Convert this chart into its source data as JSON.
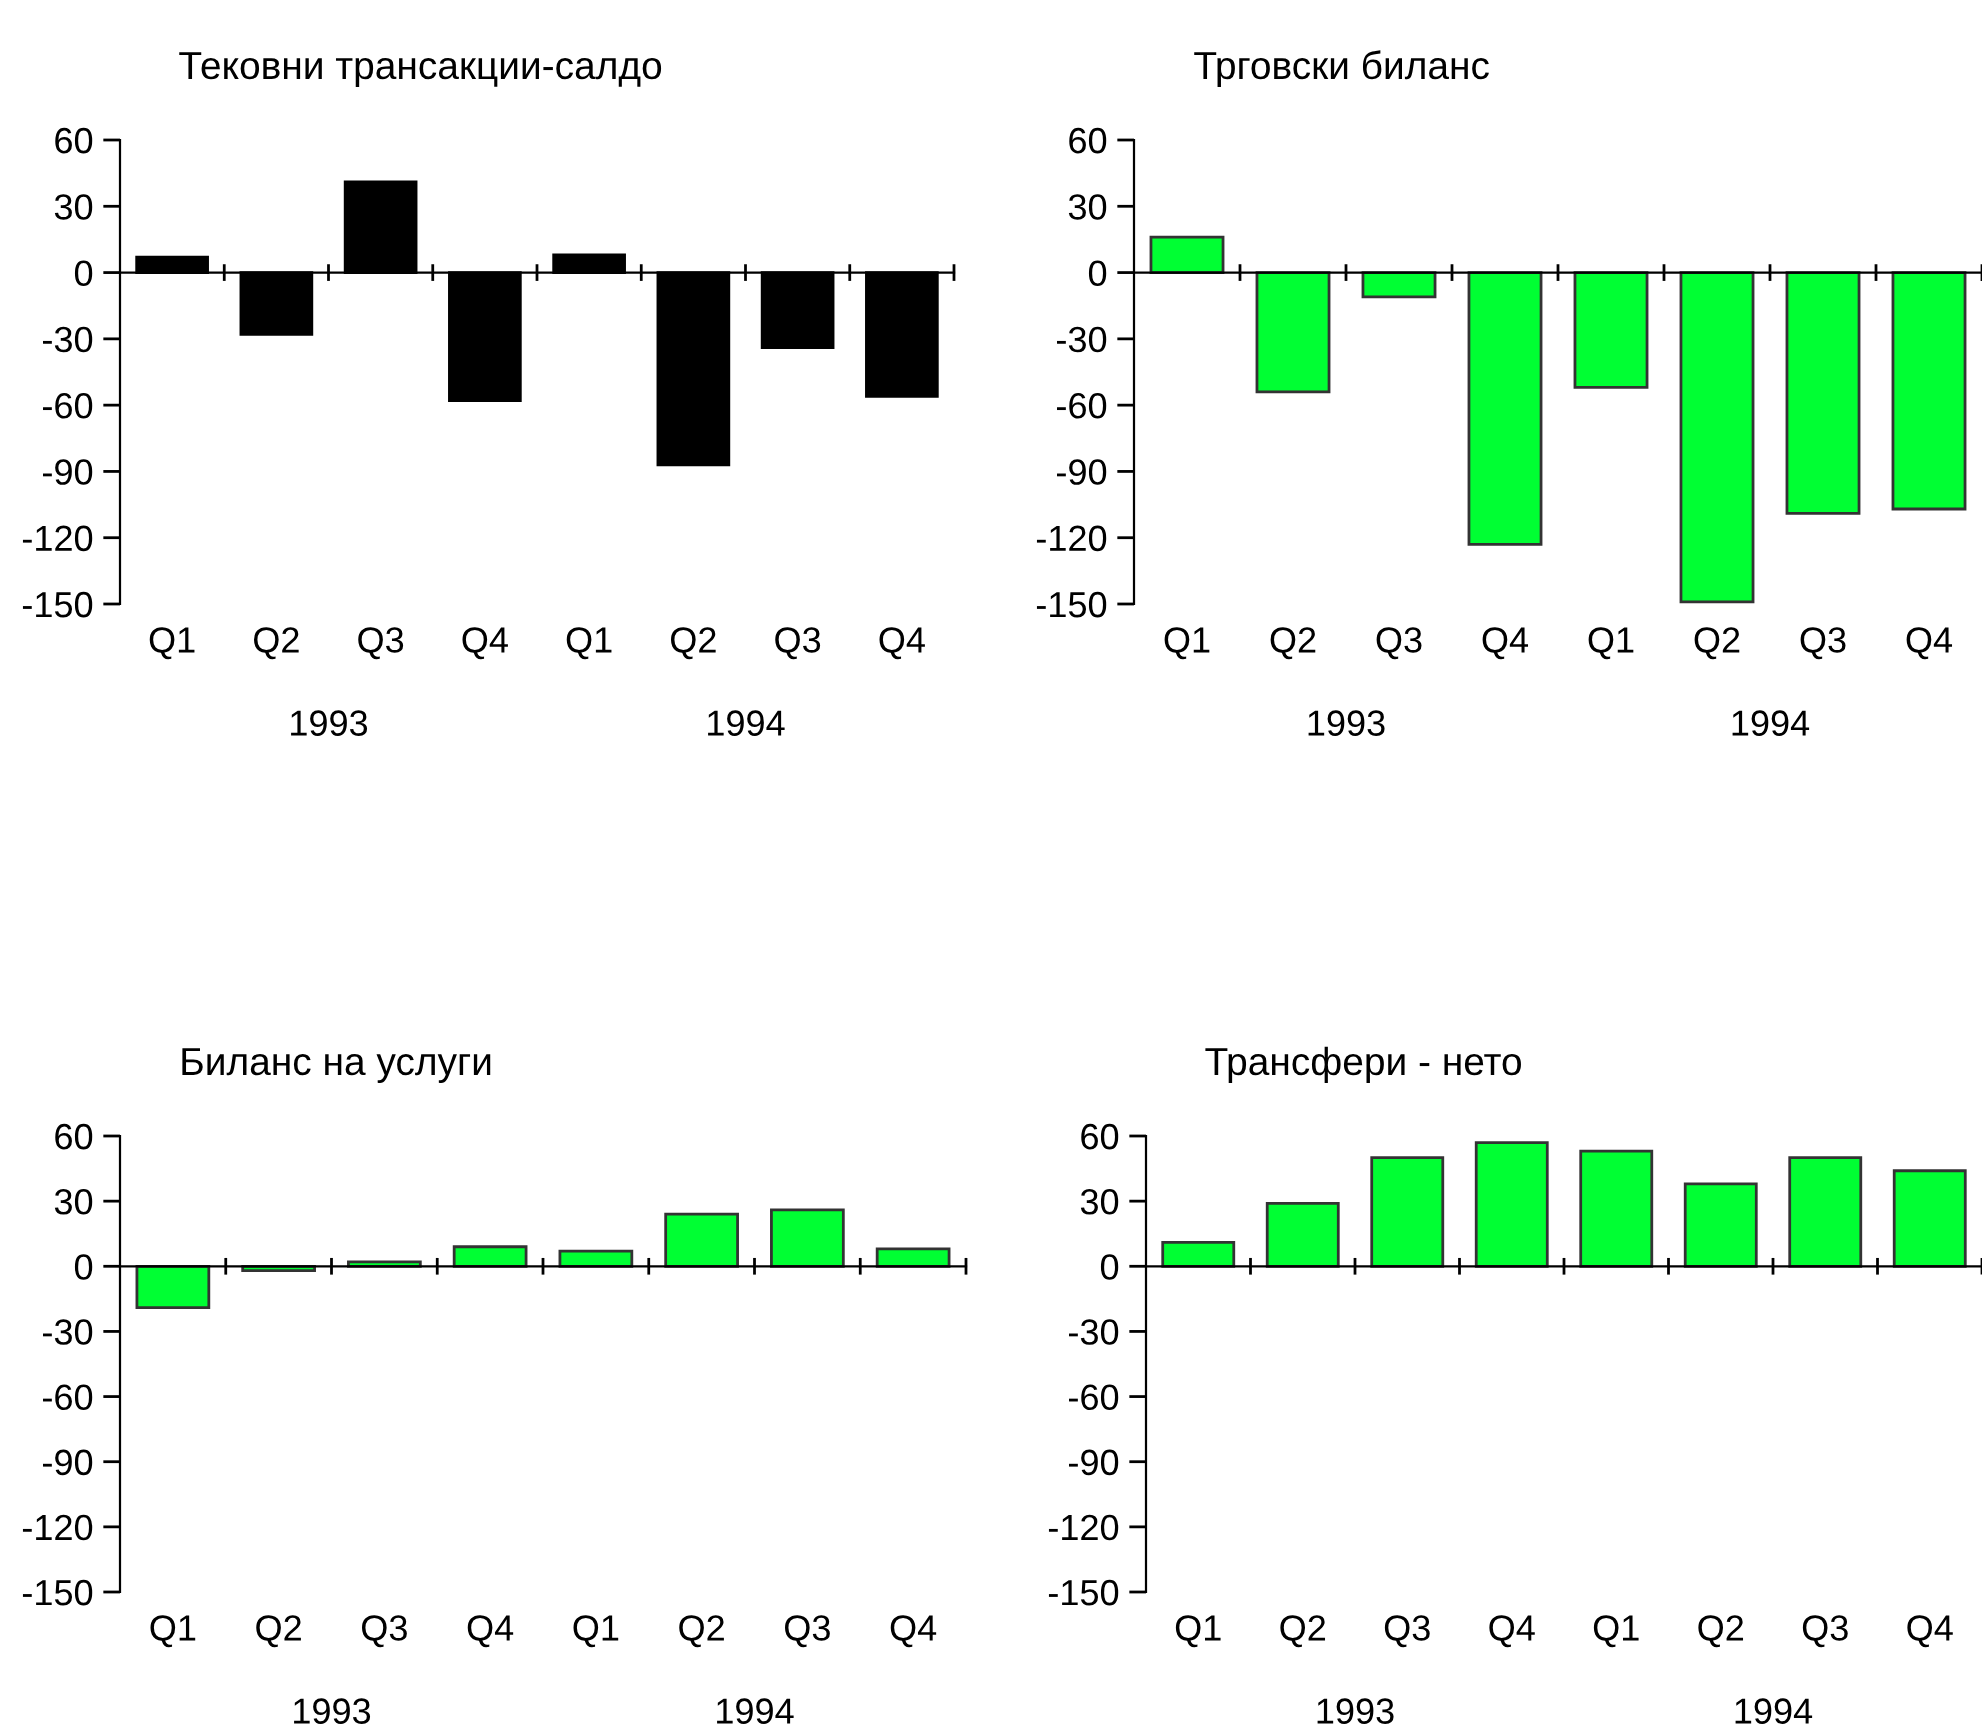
{
  "chart_data": [
    {
      "type": "bar",
      "title": "Тековни трансакции-салдо",
      "categories": [
        "Q1",
        "Q2",
        "Q3",
        "Q4",
        "Q1",
        "Q2",
        "Q3",
        "Q4"
      ],
      "values": [
        7,
        -28,
        41,
        -58,
        8,
        -87,
        -34,
        -56
      ],
      "color": "#000000",
      "ylim": [
        -150,
        60
      ],
      "yticks": [
        -150,
        -120,
        -90,
        -60,
        -30,
        0,
        30,
        60
      ],
      "annotations": [
        "1993",
        "1994"
      ]
    },
    {
      "type": "bar",
      "title": "Трговски биланс",
      "categories": [
        "Q1",
        "Q2",
        "Q3",
        "Q4",
        "Q1",
        "Q2",
        "Q3",
        "Q4"
      ],
      "values": [
        16,
        -54,
        -11,
        -123,
        -52,
        -149,
        -109,
        -107
      ],
      "color": "#00ff33",
      "ylim": [
        -150,
        60
      ],
      "yticks": [
        -150,
        -120,
        -90,
        -60,
        -30,
        0,
        30,
        60
      ],
      "annotations": [
        "1993",
        "1994"
      ]
    },
    {
      "type": "bar",
      "title": "Биланс на услуги",
      "categories": [
        "Q1",
        "Q2",
        "Q3",
        "Q4",
        "Q1",
        "Q2",
        "Q3",
        "Q4"
      ],
      "values": [
        -19,
        -2,
        2,
        9,
        7,
        24,
        26,
        8
      ],
      "color": "#00ff33",
      "ylim": [
        -150,
        60
      ],
      "yticks": [
        -150,
        -120,
        -90,
        -60,
        -30,
        0,
        30,
        60
      ],
      "annotations": [
        "1993",
        "1994"
      ]
    },
    {
      "type": "bar",
      "title": "Трансфери - нето",
      "categories": [
        "Q1",
        "Q2",
        "Q3",
        "Q4",
        "Q1",
        "Q2",
        "Q3",
        "Q4"
      ],
      "values": [
        11,
        29,
        50,
        57,
        53,
        38,
        50,
        44
      ],
      "color": "#00ff33",
      "ylim": [
        -150,
        60
      ],
      "yticks": [
        -150,
        -120,
        -90,
        -60,
        -30,
        0,
        30,
        60
      ],
      "annotations": [
        "1993",
        "1994"
      ]
    }
  ]
}
